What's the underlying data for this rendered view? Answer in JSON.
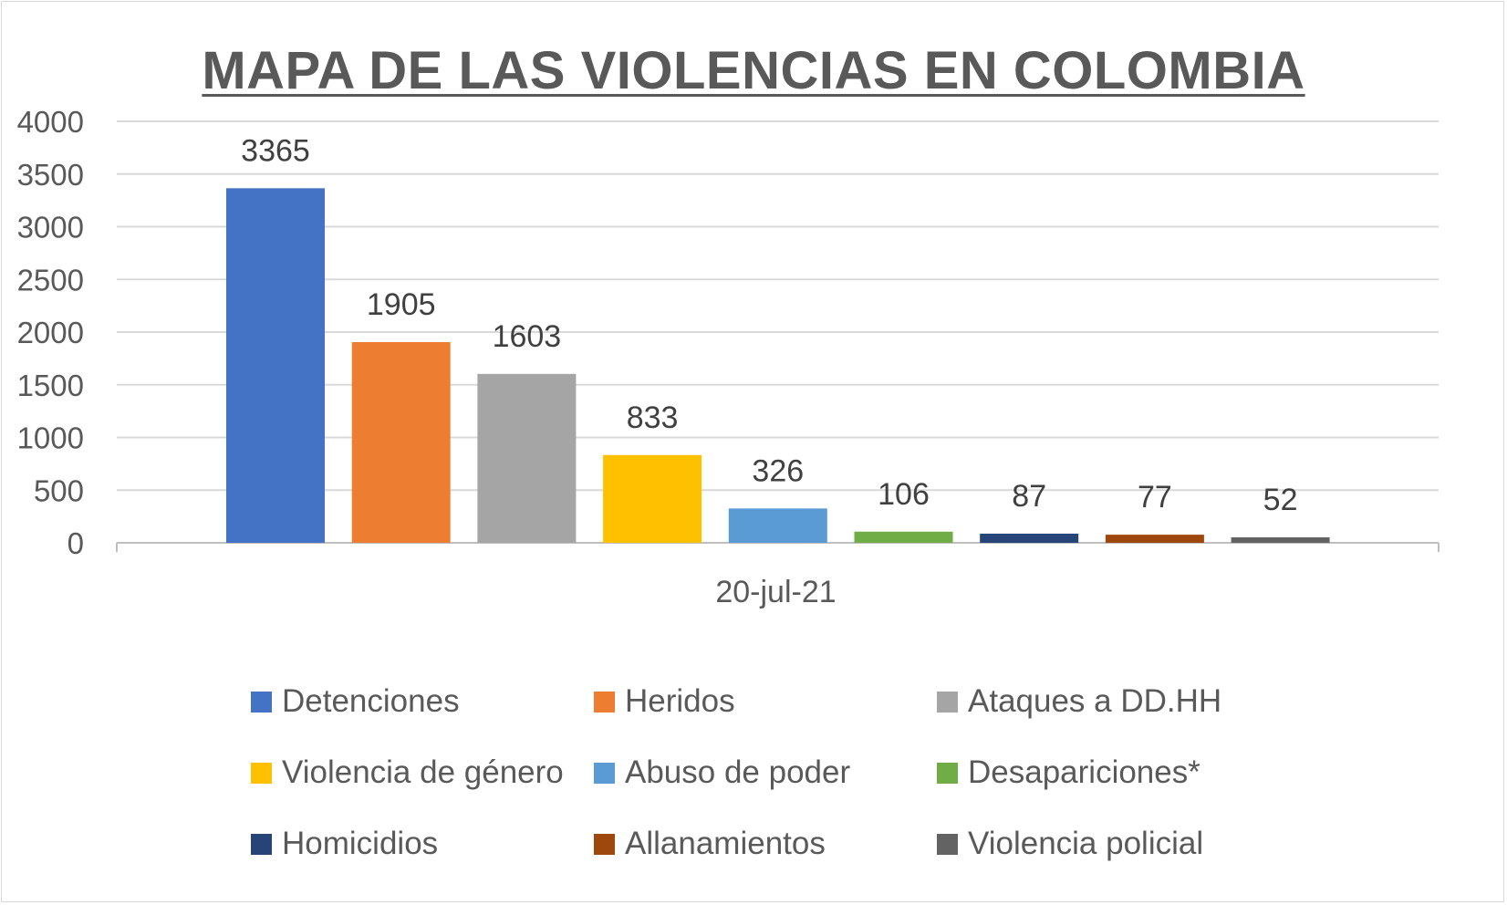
{
  "chart_data": {
    "type": "bar",
    "title": "MAPA DE LAS VIOLENCIAS EN COLOMBIA",
    "categories": [
      "20-jul-21"
    ],
    "series": [
      {
        "name": "Detenciones",
        "values": [
          3365
        ],
        "color": "#4472c4"
      },
      {
        "name": "Heridos",
        "values": [
          1905
        ],
        "color": "#ed7d31"
      },
      {
        "name": "Ataques a DD.HH",
        "values": [
          1603
        ],
        "color": "#a5a5a5"
      },
      {
        "name": "Violencia de género",
        "values": [
          833
        ],
        "color": "#ffc000"
      },
      {
        "name": "Abuso de poder",
        "values": [
          326
        ],
        "color": "#5b9bd5"
      },
      {
        "name": "Desapariciones*",
        "values": [
          106
        ],
        "color": "#70ad47"
      },
      {
        "name": "Homicidios",
        "values": [
          87
        ],
        "color": "#264478"
      },
      {
        "name": "Allanamientos",
        "values": [
          77
        ],
        "color": "#9e480e"
      },
      {
        "name": "Violencia policial",
        "values": [
          52
        ],
        "color": "#636363"
      }
    ],
    "ylim": [
      0,
      4000
    ],
    "yticks": [
      0,
      500,
      1000,
      1500,
      2000,
      2500,
      3000,
      3500,
      4000
    ],
    "grid": true,
    "legend_position": "bottom",
    "data_labels": true
  }
}
